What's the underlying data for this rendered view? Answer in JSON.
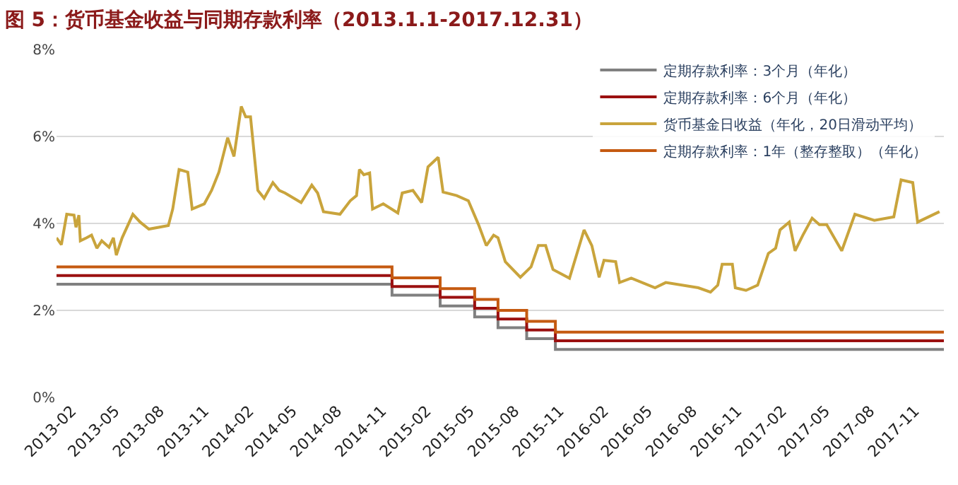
{
  "chart_data": {
    "type": "line",
    "title": "图 5：货币基金收益与同期存款利率（2013.1.1-2017.12.31）",
    "xlim": [
      "2013-01-01",
      "2017-12-31"
    ],
    "xticks": [
      "2013-02",
      "2013-05",
      "2013-08",
      "2013-11",
      "2014-02",
      "2014-05",
      "2014-08",
      "2014-11",
      "2015-02",
      "2015-05",
      "2015-08",
      "2015-11",
      "2016-02",
      "2016-05",
      "2016-08",
      "2016-11",
      "2017-02",
      "2017-05",
      "2017-08",
      "2017-11"
    ],
    "ylim": [
      0,
      8
    ],
    "yticks": [
      {
        "value": 0,
        "label": "0%"
      },
      {
        "value": 2,
        "label": "2%"
      },
      {
        "value": 4,
        "label": "4%"
      },
      {
        "value": 6,
        "label": "6%"
      },
      {
        "value": 8,
        "label": "8%"
      }
    ],
    "grid": "y",
    "legend": "top right",
    "marker": "none",
    "line_style": "solid",
    "series": [
      {
        "name": "定期存款利率：3个月（年化）",
        "type": "step",
        "color": "#808080",
        "x": [
          "2013-01-01",
          "2014-11-22",
          "2015-03-01",
          "2015-05-11",
          "2015-06-28",
          "2015-08-26",
          "2015-10-24",
          "2017-12-31"
        ],
        "values": [
          2.6,
          2.35,
          2.1,
          1.85,
          1.6,
          1.35,
          1.1,
          1.1
        ]
      },
      {
        "name": "定期存款利率：6个月（年化）",
        "type": "step",
        "color": "#9b1010",
        "x": [
          "2013-01-01",
          "2014-11-22",
          "2015-03-01",
          "2015-05-11",
          "2015-06-28",
          "2015-08-26",
          "2015-10-24",
          "2017-12-31"
        ],
        "values": [
          2.8,
          2.55,
          2.3,
          2.05,
          1.8,
          1.55,
          1.3,
          1.3
        ]
      },
      {
        "name": "货币基金日收益（年化，20日滑动平均）",
        "color": "#c9a43c",
        "x": [
          "2013-01-01",
          "2013-01-11",
          "2013-01-22",
          "2013-02-06",
          "2013-02-10",
          "2013-02-16",
          "2013-02-19",
          "2013-03-04",
          "2013-03-14",
          "2013-03-25",
          "2013-04-04",
          "2013-04-19",
          "2013-04-28",
          "2013-05-04",
          "2013-05-16",
          "2013-06-07",
          "2013-06-22",
          "2013-07-10",
          "2013-08-19",
          "2013-08-28",
          "2013-09-10",
          "2013-09-28",
          "2013-10-07",
          "2013-11-01",
          "2013-11-16",
          "2013-12-01",
          "2013-12-19",
          "2014-01-01",
          "2014-01-16",
          "2014-01-25",
          "2014-02-04",
          "2014-02-19",
          "2014-03-04",
          "2014-03-22",
          "2014-04-04",
          "2014-04-16",
          "2014-05-19",
          "2014-06-10",
          "2014-06-22",
          "2014-07-04",
          "2014-08-07",
          "2014-08-28",
          "2014-09-10",
          "2014-09-16",
          "2014-09-25",
          "2014-10-07",
          "2014-10-13",
          "2014-11-04",
          "2014-12-04",
          "2014-12-13",
          "2015-01-04",
          "2015-01-22",
          "2015-02-04",
          "2015-02-25",
          "2015-03-07",
          "2015-04-04",
          "2015-04-28",
          "2015-05-19",
          "2015-06-04",
          "2015-06-19",
          "2015-06-28",
          "2015-07-13",
          "2015-08-13",
          "2015-09-04",
          "2015-09-19",
          "2015-10-04",
          "2015-10-19",
          "2015-11-22",
          "2015-12-22",
          "2016-01-07",
          "2016-01-22",
          "2016-02-01",
          "2016-02-25",
          "2016-03-04",
          "2016-03-28",
          "2016-05-16",
          "2016-06-07",
          "2016-08-13",
          "2016-09-07",
          "2016-09-22",
          "2016-10-01",
          "2016-10-22",
          "2016-10-28",
          "2016-11-19",
          "2016-12-13",
          "2017-01-04",
          "2017-01-19",
          "2017-01-28",
          "2017-02-16",
          "2017-02-28",
          "2017-03-16",
          "2017-04-04",
          "2017-04-19",
          "2017-05-04",
          "2017-06-04",
          "2017-07-01",
          "2017-08-10",
          "2017-09-19",
          "2017-10-04",
          "2017-10-28",
          "2017-11-07",
          "2017-12-22"
        ],
        "values": [
          3.67,
          3.51,
          4.21,
          4.19,
          3.91,
          4.19,
          3.6,
          3.67,
          3.73,
          3.43,
          3.6,
          3.45,
          3.67,
          3.27,
          3.67,
          4.21,
          4.03,
          3.87,
          3.95,
          4.33,
          5.24,
          5.18,
          4.33,
          4.45,
          4.76,
          5.18,
          5.97,
          5.54,
          6.69,
          6.45,
          6.45,
          4.76,
          4.58,
          4.94,
          4.76,
          4.7,
          4.48,
          4.88,
          4.7,
          4.27,
          4.21,
          4.52,
          4.64,
          5.24,
          5.12,
          5.16,
          4.33,
          4.45,
          4.24,
          4.7,
          4.76,
          4.48,
          5.3,
          5.52,
          4.72,
          4.64,
          4.52,
          3.97,
          3.49,
          3.73,
          3.67,
          3.12,
          2.76,
          3.0,
          3.49,
          3.49,
          2.94,
          2.74,
          3.85,
          3.49,
          2.76,
          3.15,
          3.12,
          2.64,
          2.74,
          2.52,
          2.64,
          2.52,
          2.42,
          2.58,
          3.06,
          3.06,
          2.52,
          2.46,
          2.58,
          3.31,
          3.43,
          3.85,
          4.03,
          3.37,
          3.73,
          4.12,
          3.97,
          3.97,
          3.37,
          4.21,
          4.07,
          4.15,
          5.0,
          4.94,
          4.03,
          4.27
        ]
      },
      {
        "name": "定期存款利率：1年（整存整取）（年化）",
        "type": "step",
        "color": "#c55a11",
        "x": [
          "2013-01-01",
          "2014-11-22",
          "2015-03-01",
          "2015-05-11",
          "2015-06-28",
          "2015-08-26",
          "2015-10-24",
          "2017-12-31"
        ],
        "values": [
          3.0,
          2.75,
          2.5,
          2.25,
          2.0,
          1.75,
          1.5,
          1.5
        ]
      }
    ]
  }
}
